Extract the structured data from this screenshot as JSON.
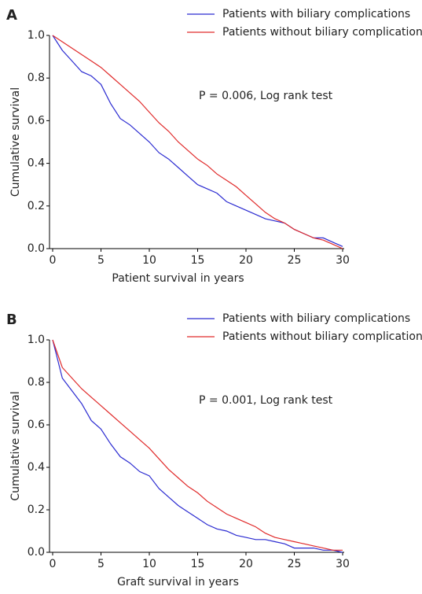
{
  "chart_data": [
    {
      "type": "line",
      "panel_label": "A",
      "annotation": "P = 0.006, Log rank test",
      "x_label": "Patient survival in years",
      "y_label": "Cumulative survival",
      "x": [
        0,
        1,
        2,
        3,
        4,
        5,
        6,
        7,
        8,
        9,
        10,
        11,
        12,
        13,
        14,
        15,
        16,
        17,
        18,
        19,
        20,
        21,
        22,
        23,
        24,
        25,
        26,
        27,
        28,
        29,
        30
      ],
      "series": [
        {
          "name": "Patients with biliary complications",
          "color": "#2b2bd1",
          "values": [
            1.0,
            0.93,
            0.88,
            0.83,
            0.81,
            0.77,
            0.68,
            0.61,
            0.58,
            0.54,
            0.5,
            0.45,
            0.42,
            0.38,
            0.34,
            0.3,
            0.28,
            0.26,
            0.22,
            0.2,
            0.18,
            0.16,
            0.14,
            0.13,
            0.12,
            0.09,
            0.07,
            0.05,
            0.05,
            0.03,
            0.01
          ]
        },
        {
          "name": "Patients without biliary complications",
          "color": "#e02a2a",
          "values": [
            1.0,
            0.97,
            0.94,
            0.91,
            0.88,
            0.85,
            0.81,
            0.77,
            0.73,
            0.69,
            0.64,
            0.59,
            0.55,
            0.5,
            0.46,
            0.42,
            0.39,
            0.35,
            0.32,
            0.29,
            0.25,
            0.21,
            0.17,
            0.14,
            0.12,
            0.09,
            0.07,
            0.05,
            0.04,
            0.02,
            0.0
          ]
        }
      ],
      "xlim": [
        0,
        30
      ],
      "xticks": [
        0,
        5,
        10,
        15,
        20,
        25,
        30
      ],
      "ylim": [
        0,
        1
      ],
      "yticks": [
        {
          "value": 0,
          "label": "0.0"
        },
        0.2,
        0.4,
        0.6,
        0.8,
        {
          "value": 1,
          "label": "1.0"
        }
      ]
    },
    {
      "type": "line",
      "panel_label": "B",
      "annotation": "P = 0.001, Log rank test",
      "x_label": "Graft survival in years",
      "y_label": "Cumulative survival",
      "x": [
        0,
        1,
        2,
        3,
        4,
        5,
        6,
        7,
        8,
        9,
        10,
        11,
        12,
        13,
        14,
        15,
        16,
        17,
        18,
        19,
        20,
        21,
        22,
        23,
        24,
        25,
        26,
        27,
        28,
        29,
        30
      ],
      "series": [
        {
          "name": "Patients with biliary complications",
          "color": "#2b2bd1",
          "values": [
            1.0,
            0.82,
            0.76,
            0.7,
            0.62,
            0.58,
            0.51,
            0.45,
            0.42,
            0.38,
            0.36,
            0.3,
            0.26,
            0.22,
            0.19,
            0.16,
            0.13,
            0.11,
            0.1,
            0.08,
            0.07,
            0.06,
            0.06,
            0.05,
            0.04,
            0.02,
            0.02,
            0.02,
            0.01,
            0.01,
            0.0
          ]
        },
        {
          "name": "Patients without biliary complications",
          "color": "#e02a2a",
          "values": [
            1.0,
            0.87,
            0.82,
            0.77,
            0.73,
            0.69,
            0.65,
            0.61,
            0.57,
            0.53,
            0.49,
            0.44,
            0.39,
            0.35,
            0.31,
            0.28,
            0.24,
            0.21,
            0.18,
            0.16,
            0.14,
            0.12,
            0.09,
            0.07,
            0.06,
            0.05,
            0.04,
            0.03,
            0.02,
            0.01,
            0.01
          ]
        }
      ],
      "xlim": [
        0,
        30
      ],
      "xticks": [
        0,
        5,
        10,
        15,
        20,
        25,
        30
      ],
      "ylim": [
        0,
        1
      ],
      "yticks": [
        {
          "value": 0,
          "label": "0.0"
        },
        0.2,
        0.4,
        0.6,
        0.8,
        {
          "value": 1,
          "label": "1.0"
        }
      ]
    }
  ]
}
